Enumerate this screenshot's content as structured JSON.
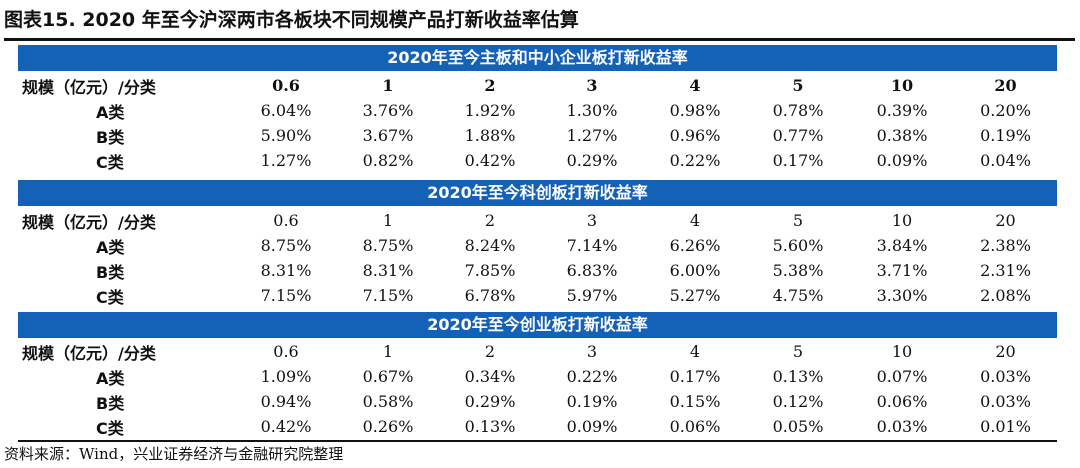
{
  "title": "图表15. 2020 年至今沪深两市各板块不同规模产品打新收益率估算",
  "source": "资料来源：Wind，兴业证券经济与金融研究院整理",
  "sections": [
    {
      "heading": "2020年至今主板和中小企业板打新收益率",
      "row_label": "规模（亿元）/分类",
      "columns": [
        "0.6",
        "1",
        "2",
        "3",
        "4",
        "5",
        "10",
        "20"
      ],
      "rows": [
        {
          "label": "A类",
          "values": [
            "6.04%",
            "3.76%",
            "1.92%",
            "1.30%",
            "0.98%",
            "0.78%",
            "0.39%",
            "0.20%"
          ]
        },
        {
          "label": "B类",
          "values": [
            "5.90%",
            "3.67%",
            "1.88%",
            "1.27%",
            "0.96%",
            "0.77%",
            "0.38%",
            "0.19%"
          ]
        },
        {
          "label": "C类",
          "values": [
            "1.27%",
            "0.82%",
            "0.42%",
            "0.29%",
            "0.22%",
            "0.17%",
            "0.09%",
            "0.04%"
          ]
        }
      ]
    },
    {
      "heading": "2020年至今科创板打新收益率",
      "row_label": "规模（亿元）/分类",
      "columns": [
        "0.6",
        "1",
        "2",
        "3",
        "4",
        "5",
        "10",
        "20"
      ],
      "rows": [
        {
          "label": "A类",
          "values": [
            "8.75%",
            "8.75%",
            "8.24%",
            "7.14%",
            "6.26%",
            "5.60%",
            "3.84%",
            "2.38%"
          ]
        },
        {
          "label": "B类",
          "values": [
            "8.31%",
            "8.31%",
            "7.85%",
            "6.83%",
            "6.00%",
            "5.38%",
            "3.71%",
            "2.31%"
          ]
        },
        {
          "label": "C类",
          "values": [
            "7.15%",
            "7.15%",
            "6.78%",
            "5.97%",
            "5.27%",
            "4.75%",
            "3.30%",
            "2.08%"
          ]
        }
      ]
    },
    {
      "heading": "2020年至今创业板打新收益率",
      "row_label": "规模（亿元）/分类",
      "columns": [
        "0.6",
        "1",
        "2",
        "3",
        "4",
        "5",
        "10",
        "20"
      ],
      "rows": [
        {
          "label": "A类",
          "values": [
            "1.09%",
            "0.67%",
            "0.34%",
            "0.22%",
            "0.17%",
            "0.13%",
            "0.07%",
            "0.03%"
          ]
        },
        {
          "label": "B类",
          "values": [
            "0.94%",
            "0.58%",
            "0.29%",
            "0.19%",
            "0.15%",
            "0.12%",
            "0.06%",
            "0.03%"
          ]
        },
        {
          "label": "C类",
          "values": [
            "0.42%",
            "0.26%",
            "0.13%",
            "0.09%",
            "0.06%",
            "0.05%",
            "0.03%",
            "0.01%"
          ]
        }
      ]
    }
  ]
}
